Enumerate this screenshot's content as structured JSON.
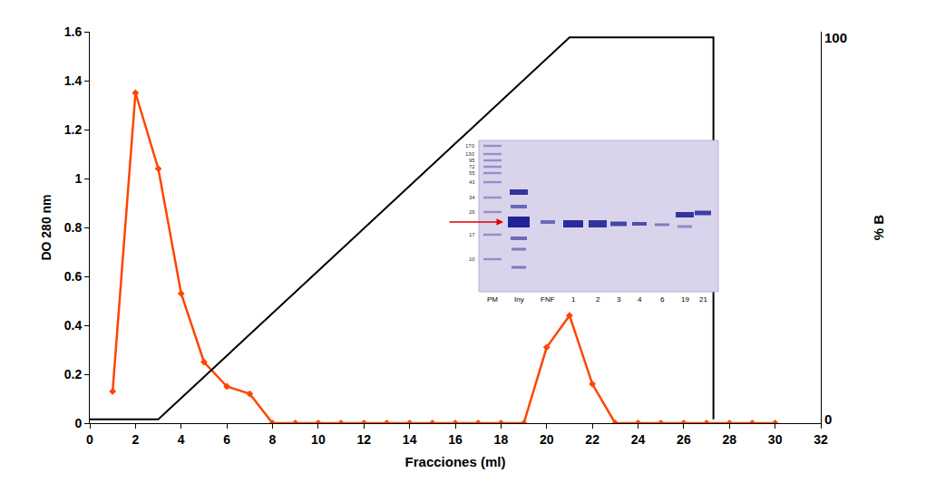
{
  "chart_data": {
    "type": "line",
    "x_label": "Fracciones (ml)",
    "y_label": "DO 280 nm",
    "y2_label": "% B",
    "x": [
      1,
      2,
      3,
      4,
      5,
      6,
      7,
      8,
      9,
      10,
      11,
      12,
      13,
      14,
      15,
      16,
      17,
      18,
      19,
      20,
      21,
      22,
      23,
      24,
      25,
      26,
      27,
      28,
      29,
      30
    ],
    "series": [
      {
        "type": "line",
        "color": "#ff4500",
        "marker": "diamond",
        "values": [
          0.13,
          1.35,
          1.04,
          0.53,
          0.25,
          0.15,
          0.12,
          0,
          0,
          0,
          0,
          0,
          0,
          0,
          0,
          0,
          0,
          0,
          0,
          0.31,
          0.44,
          0.16,
          0,
          0,
          0,
          0,
          0,
          0,
          0,
          0
        ]
      },
      {
        "type": "line",
        "axis": "y2",
        "color": "#000000",
        "x": [
          0,
          3,
          21,
          27.3,
          27.3
        ],
        "values": [
          0,
          0,
          100,
          100,
          0
        ]
      }
    ],
    "xlim": [
      0,
      32
    ],
    "xticks": [
      0,
      2,
      4,
      6,
      8,
      10,
      12,
      14,
      16,
      18,
      20,
      22,
      24,
      26,
      28,
      30,
      32
    ],
    "ylim": [
      0,
      1.6
    ],
    "yticks": [
      0,
      0.2,
      0.4,
      0.6,
      0.8,
      1,
      1.2,
      1.4,
      1.6
    ],
    "y2lim": [
      -1,
      101.5
    ],
    "y2ticks": [
      0,
      100
    ],
    "grid": false,
    "inset": {
      "mw_labels": [
        170,
        130,
        95,
        72,
        55,
        43,
        34,
        26,
        17,
        10
      ],
      "lane_labels": [
        "PM",
        "Iny",
        "FNF",
        "1",
        "2",
        "3",
        "4",
        "6",
        "19",
        "21"
      ]
    }
  }
}
